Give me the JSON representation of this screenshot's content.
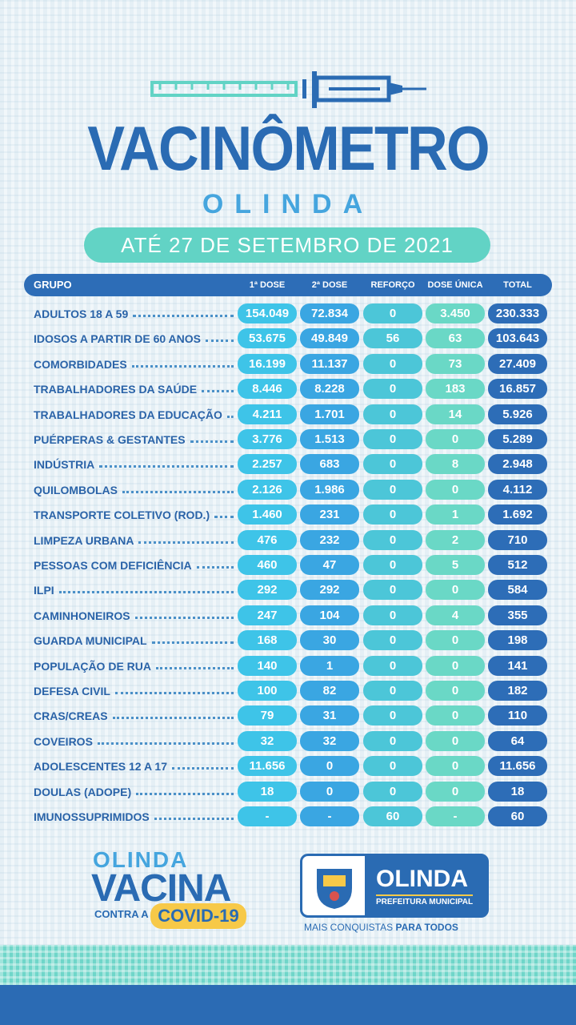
{
  "header": {
    "title": "VACINÔMETRO",
    "subtitle": "OLINDA",
    "date": "ATÉ 27 DE SETEMBRO DE 2021"
  },
  "table": {
    "columns": [
      "GRUPO",
      "1ª DOSE",
      "2ª DOSE",
      "REFORÇO",
      "DOSE ÚNICA",
      "TOTAL"
    ],
    "rows": [
      [
        "ADULTOS 18 A 59",
        "154.049",
        "72.834",
        "0",
        "3.450",
        "230.333"
      ],
      [
        "IDOSOS A PARTIR DE 60 ANOS",
        "53.675",
        "49.849",
        "56",
        "63",
        "103.643"
      ],
      [
        "COMORBIDADES",
        "16.199",
        "11.137",
        "0",
        "73",
        "27.409"
      ],
      [
        "TRABALHADORES DA SAÚDE",
        "8.446",
        "8.228",
        "0",
        "183",
        "16.857"
      ],
      [
        "TRABALHADORES DA EDUCAÇÃO",
        "4.211",
        "1.701",
        "0",
        "14",
        "5.926"
      ],
      [
        "PUÉRPERAS & GESTANTES",
        "3.776",
        "1.513",
        "0",
        "0",
        "5.289"
      ],
      [
        "INDÚSTRIA",
        "2.257",
        "683",
        "0",
        "8",
        "2.948"
      ],
      [
        "QUILOMBOLAS",
        "2.126",
        "1.986",
        "0",
        "0",
        "4.112"
      ],
      [
        "TRANSPORTE COLETIVO (ROD.)",
        "1.460",
        "231",
        "0",
        "1",
        "1.692"
      ],
      [
        "LIMPEZA URBANA",
        "476",
        "232",
        "0",
        "2",
        "710"
      ],
      [
        "PESSOAS COM DEFICIÊNCIA",
        "460",
        "47",
        "0",
        "5",
        "512"
      ],
      [
        "ILPI",
        "292",
        "292",
        "0",
        "0",
        "584"
      ],
      [
        "CAMINHONEIROS",
        "247",
        "104",
        "0",
        "4",
        "355"
      ],
      [
        "GUARDA MUNICIPAL",
        "168",
        "30",
        "0",
        "0",
        "198"
      ],
      [
        "POPULAÇÃO DE RUA",
        "140",
        "1",
        "0",
        "0",
        "141"
      ],
      [
        "DEFESA CIVIL",
        "100",
        "82",
        "0",
        "0",
        "182"
      ],
      [
        "CRAS/CREAS",
        "79",
        "31",
        "0",
        "0",
        "110"
      ],
      [
        "COVEIROS",
        "32",
        "32",
        "0",
        "0",
        "64"
      ],
      [
        "ADOLESCENTES 12 A 17",
        "11.656",
        "0",
        "0",
        "0",
        "11.656"
      ],
      [
        "DOULAS (ADOPE)",
        "18",
        "0",
        "0",
        "0",
        "18"
      ],
      [
        "IMUNOSSUPRIMIDOS",
        "-",
        "-",
        "60",
        "-",
        "60"
      ]
    ]
  },
  "footer": {
    "campaign": [
      "OLINDA",
      "VACINA",
      "CONTRA A",
      "COVID-19"
    ],
    "logo": {
      "name": "OLINDA",
      "sub": "PREFEITURA MUNICIPAL"
    },
    "slogan": [
      "MAIS CONQUISTAS",
      "PARA TODOS"
    ]
  }
}
